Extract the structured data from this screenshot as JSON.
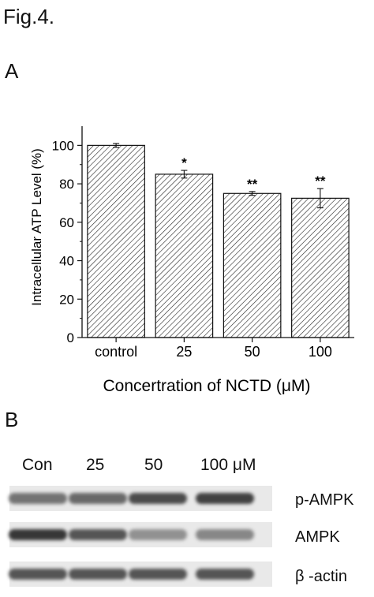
{
  "figure_title": "Fig.4.",
  "panel_a_label": "A",
  "panel_b_label": "B",
  "chart_data": {
    "type": "bar",
    "categories": [
      "control",
      "25",
      "50",
      "100"
    ],
    "values": [
      100,
      85,
      75,
      72.5
    ],
    "errors": [
      1,
      2,
      1,
      5
    ],
    "significance": [
      "",
      "*",
      "**",
      "**"
    ],
    "xlabel": "Concertration of NCTD (μM)",
    "ylabel": "Intracellular ATP Level (%)",
    "ylim": [
      0,
      110
    ],
    "yticks": [
      0,
      20,
      40,
      60,
      80,
      100
    ],
    "bar_fill": "diagonal-hatch",
    "bar_color": "#222222"
  },
  "western_blot": {
    "lane_labels": [
      "Con",
      "25",
      "50",
      "100 μM"
    ],
    "bands": [
      {
        "label": "p-AMPK",
        "intensity": [
          0.55,
          0.6,
          0.75,
          0.8
        ]
      },
      {
        "label": "AMPK",
        "intensity": [
          0.85,
          0.7,
          0.4,
          0.45
        ]
      },
      {
        "label": "β -actin",
        "intensity": [
          0.7,
          0.7,
          0.7,
          0.7
        ]
      }
    ]
  }
}
